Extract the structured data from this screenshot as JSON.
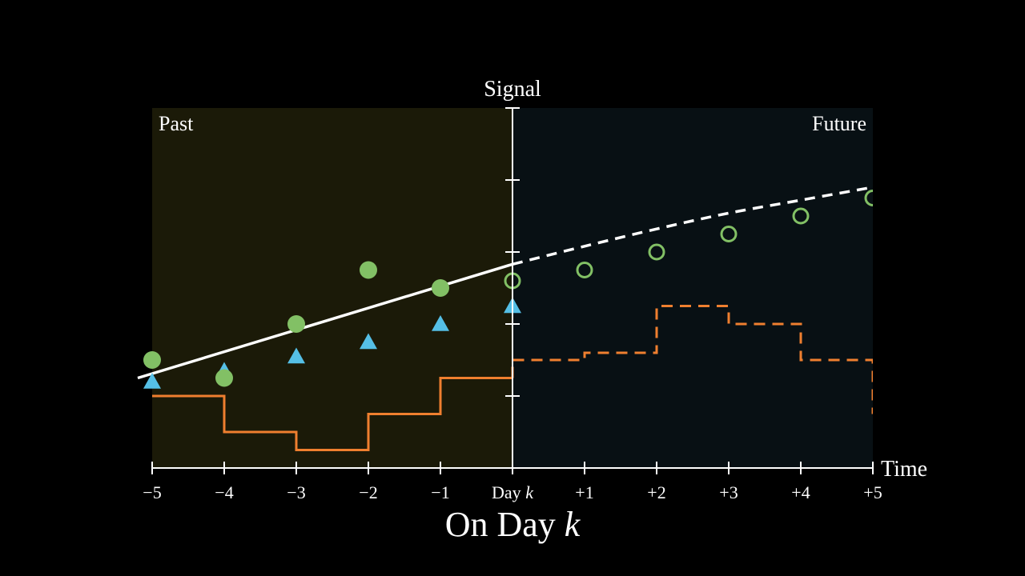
{
  "chart_data": {
    "type": "scatter",
    "title": "On Day k",
    "ylabel": "Signal",
    "xlabel": "Time",
    "regions": {
      "left": "Past",
      "right": "Future"
    },
    "x": [
      -5,
      -4,
      -3,
      -2,
      -1,
      0,
      1,
      2,
      3,
      4,
      5
    ],
    "xtick_labels": [
      "−5",
      "−4",
      "−3",
      "−2",
      "−1",
      "Day k",
      "+1",
      "+2",
      "+3",
      "+4",
      "+5"
    ],
    "xlim": [
      -5,
      5
    ],
    "ylim": [
      0,
      5
    ],
    "yticks": [
      1,
      2,
      3,
      4,
      5
    ],
    "grid": false,
    "series": [
      {
        "kind": "observed-circles",
        "color": "#82c065",
        "points": [
          [
            -5,
            1.5
          ],
          [
            -4,
            1.25
          ],
          [
            -3,
            2.0
          ],
          [
            -2,
            2.75
          ],
          [
            -1,
            2.5
          ]
        ]
      },
      {
        "kind": "forecast-open-circles",
        "color": "#82c065",
        "points": [
          [
            0,
            2.6
          ],
          [
            1,
            2.75
          ],
          [
            2,
            3.0
          ],
          [
            3,
            3.25
          ],
          [
            4,
            3.5
          ],
          [
            5,
            3.75
          ]
        ]
      },
      {
        "kind": "triangles",
        "color": "#55bfe6",
        "points": [
          [
            -5,
            1.2
          ],
          [
            -4,
            1.35
          ],
          [
            -3,
            1.55
          ],
          [
            -2,
            1.75
          ],
          [
            -1,
            2.0
          ],
          [
            0,
            2.25
          ]
        ]
      },
      {
        "kind": "fit-line",
        "color": "#ffffff",
        "points": [
          [
            -5.2,
            1.25
          ],
          [
            0,
            2.83
          ]
        ]
      },
      {
        "kind": "forecast-curve",
        "color": "#ffffff",
        "points": [
          [
            0,
            2.83
          ],
          [
            1,
            3.08
          ],
          [
            2,
            3.32
          ],
          [
            3,
            3.54
          ],
          [
            4,
            3.72
          ],
          [
            5,
            3.9
          ]
        ]
      },
      {
        "kind": "past-step",
        "color": "#ef7f2f",
        "points": [
          [
            -5,
            1.0
          ],
          [
            -4,
            0.5
          ],
          [
            -3,
            0.25
          ],
          [
            -2,
            0.75
          ],
          [
            -1,
            1.25
          ],
          [
            0,
            1.25
          ]
        ]
      },
      {
        "kind": "future-step",
        "color": "#ef7f2f",
        "points": [
          [
            0,
            1.5
          ],
          [
            1,
            1.6
          ],
          [
            2,
            2.25
          ],
          [
            3,
            2.0
          ],
          [
            4,
            1.5
          ],
          [
            5,
            0.75
          ]
        ]
      }
    ]
  },
  "colors": {
    "past_bg": "#1b1a08",
    "future_bg": "#081014",
    "axis": "#ffffff"
  }
}
